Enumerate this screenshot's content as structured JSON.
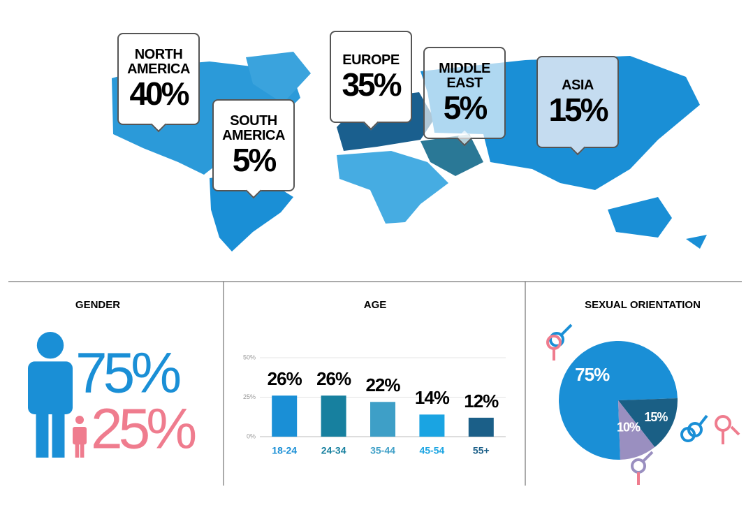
{
  "chart_data": [
    {
      "type": "map",
      "categories": [
        "NORTH AMERICA",
        "SOUTH AMERICA",
        "EUROPE",
        "MIDDLE EAST",
        "ASIA"
      ],
      "values": [
        40,
        5,
        35,
        5,
        15
      ],
      "value_labels": [
        "40%",
        "5%",
        "35%",
        "5%",
        "15%"
      ]
    },
    {
      "type": "pictogram",
      "title": "GENDER",
      "values": [
        75,
        25
      ],
      "value_labels": [
        "75%",
        "25%"
      ],
      "colors": [
        "#1a8fd6",
        "#ef7c8e"
      ]
    },
    {
      "type": "bar",
      "title": "AGE",
      "categories": [
        "18-24",
        "24-34",
        "35-44",
        "45-54",
        "55+"
      ],
      "values": [
        26,
        26,
        22,
        14,
        12
      ],
      "value_labels": [
        "26%",
        "26%",
        "22%",
        "14%",
        "12%"
      ],
      "colors": [
        "#1a8fd6",
        "#17809f",
        "#3e9fc7",
        "#1aa4e2",
        "#1b5f88"
      ],
      "ylim": [
        0,
        50
      ],
      "yticks": [
        {
          "value": 0,
          "label": "0%"
        },
        {
          "value": 25,
          "label": "25%"
        },
        {
          "value": 50,
          "label": "50%"
        }
      ],
      "grid": true
    },
    {
      "type": "pie",
      "title": "SEXUAL ORIENTATION",
      "values": [
        75,
        15,
        10
      ],
      "value_labels": [
        "75%",
        "15%",
        "10%"
      ],
      "colors": [
        "#1a8fd6",
        "#1a5f85",
        "#9a8fc0"
      ]
    }
  ]
}
